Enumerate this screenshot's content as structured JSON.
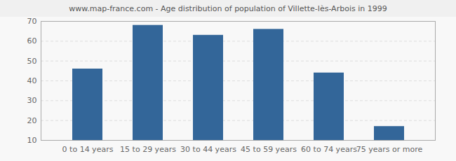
{
  "chart_data": {
    "type": "bar",
    "title": "www.map-france.com - Age distribution of population of Villette-lès-Arbois in 1999",
    "categories": [
      "0 to 14 years",
      "15 to 29 years",
      "30 to 44 years",
      "45 to 59 years",
      "60 to 74 years",
      "75 years or more"
    ],
    "values": [
      46,
      68,
      63,
      66,
      44,
      17
    ],
    "color": "#336699",
    "ylim": [
      10,
      70
    ],
    "yticks": [
      10,
      20,
      30,
      40,
      50,
      60,
      70
    ],
    "grid": true
  }
}
